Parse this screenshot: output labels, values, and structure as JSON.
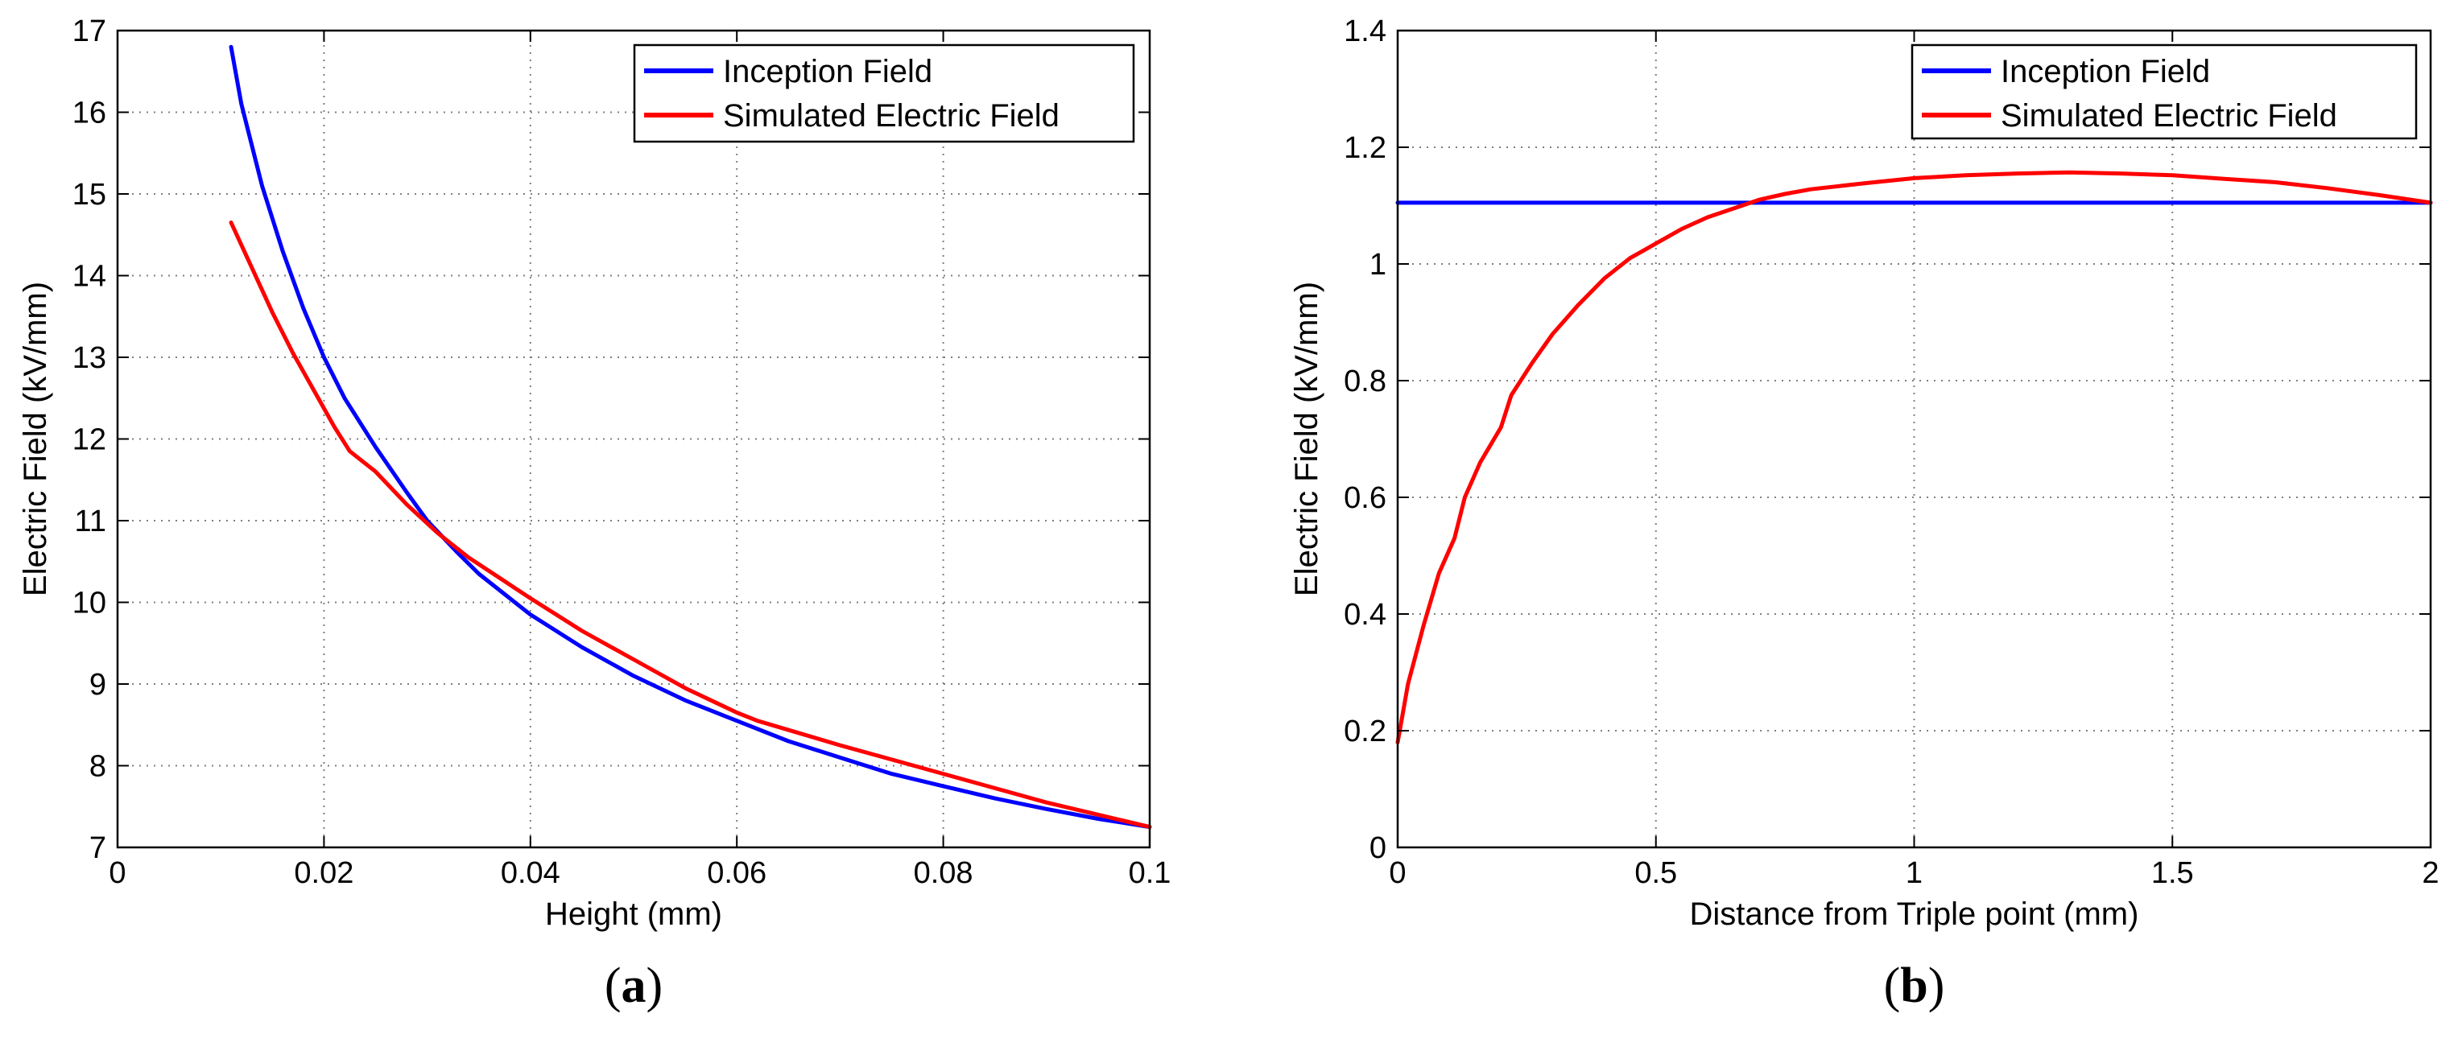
{
  "chart_data": [
    {
      "type": "line",
      "panel_label": "(a)",
      "panel_letter": "a",
      "xlabel": "Height (mm)",
      "ylabel": "Electric Field (kV/mm)",
      "xlim": [
        0,
        0.1
      ],
      "ylim": [
        7,
        17
      ],
      "xticks": [
        0,
        0.02,
        0.04,
        0.06,
        0.08,
        0.1
      ],
      "yticks": [
        7,
        8,
        9,
        10,
        11,
        12,
        13,
        14,
        15,
        16,
        17
      ],
      "xtick_labels": [
        "0",
        "0.02",
        "0.04",
        "0.06",
        "0.08",
        "0.1"
      ],
      "ytick_labels": [
        "7",
        "8",
        "9",
        "10",
        "11",
        "12",
        "13",
        "14",
        "15",
        "16",
        "17"
      ],
      "grid": true,
      "legend_position": "top-right",
      "series": [
        {
          "name": "Inception Field",
          "color": "#0000ff",
          "points": [
            [
              0.011,
              16.8
            ],
            [
              0.012,
              16.1
            ],
            [
              0.014,
              15.1
            ],
            [
              0.016,
              14.3
            ],
            [
              0.018,
              13.6
            ],
            [
              0.02,
              13.0
            ],
            [
              0.022,
              12.5
            ],
            [
              0.025,
              11.9
            ],
            [
              0.028,
              11.35
            ],
            [
              0.03,
              11.0
            ],
            [
              0.033,
              10.6
            ],
            [
              0.035,
              10.35
            ],
            [
              0.04,
              9.85
            ],
            [
              0.045,
              9.45
            ],
            [
              0.05,
              9.1
            ],
            [
              0.055,
              8.8
            ],
            [
              0.06,
              8.55
            ],
            [
              0.065,
              8.3
            ],
            [
              0.07,
              8.1
            ],
            [
              0.075,
              7.9
            ],
            [
              0.08,
              7.75
            ],
            [
              0.085,
              7.6
            ],
            [
              0.09,
              7.47
            ],
            [
              0.095,
              7.35
            ],
            [
              0.1,
              7.25
            ]
          ]
        },
        {
          "name": "Simulated Electric Field",
          "color": "#ff0000",
          "points": [
            [
              0.011,
              14.65
            ],
            [
              0.013,
              14.1
            ],
            [
              0.015,
              13.55
            ],
            [
              0.017,
              13.05
            ],
            [
              0.019,
              12.6
            ],
            [
              0.021,
              12.15
            ],
            [
              0.0225,
              11.85
            ],
            [
              0.025,
              11.6
            ],
            [
              0.028,
              11.2
            ],
            [
              0.031,
              10.85
            ],
            [
              0.034,
              10.55
            ],
            [
              0.037,
              10.3
            ],
            [
              0.04,
              10.05
            ],
            [
              0.045,
              9.65
            ],
            [
              0.05,
              9.3
            ],
            [
              0.055,
              8.95
            ],
            [
              0.06,
              8.65
            ],
            [
              0.062,
              8.55
            ],
            [
              0.07,
              8.25
            ],
            [
              0.08,
              7.9
            ],
            [
              0.09,
              7.55
            ],
            [
              0.1,
              7.25
            ]
          ]
        }
      ]
    },
    {
      "type": "line",
      "panel_label": "(b)",
      "panel_letter": "b",
      "xlabel": "Distance from Triple point (mm)",
      "ylabel": "Electric Field (kV/mm)",
      "xlim": [
        0,
        2
      ],
      "ylim": [
        0,
        1.4
      ],
      "xticks": [
        0,
        0.5,
        1,
        1.5,
        2
      ],
      "yticks": [
        0,
        0.2,
        0.4,
        0.6,
        0.8,
        1,
        1.2,
        1.4
      ],
      "xtick_labels": [
        "0",
        "0.5",
        "1",
        "1.5",
        "2"
      ],
      "ytick_labels": [
        "0",
        "0.2",
        "0.4",
        "0.6",
        "0.8",
        "1",
        "1.2",
        "1.4"
      ],
      "grid": true,
      "legend_position": "top-right",
      "series": [
        {
          "name": "Inception Field",
          "color": "#0000ff",
          "points": [
            [
              0,
              1.105
            ],
            [
              2,
              1.105
            ]
          ]
        },
        {
          "name": "Simulated Electric Field",
          "color": "#ff0000",
          "points": [
            [
              0,
              0.18
            ],
            [
              0.02,
              0.28
            ],
            [
              0.05,
              0.38
            ],
            [
              0.08,
              0.47
            ],
            [
              0.11,
              0.53
            ],
            [
              0.13,
              0.6
            ],
            [
              0.16,
              0.66
            ],
            [
              0.2,
              0.72
            ],
            [
              0.22,
              0.775
            ],
            [
              0.26,
              0.83
            ],
            [
              0.3,
              0.88
            ],
            [
              0.35,
              0.93
            ],
            [
              0.4,
              0.975
            ],
            [
              0.45,
              1.01
            ],
            [
              0.5,
              1.035
            ],
            [
              0.55,
              1.06
            ],
            [
              0.6,
              1.08
            ],
            [
              0.65,
              1.095
            ],
            [
              0.7,
              1.11
            ],
            [
              0.75,
              1.12
            ],
            [
              0.8,
              1.128
            ],
            [
              0.9,
              1.138
            ],
            [
              1.0,
              1.147
            ],
            [
              1.1,
              1.152
            ],
            [
              1.2,
              1.155
            ],
            [
              1.3,
              1.157
            ],
            [
              1.4,
              1.155
            ],
            [
              1.5,
              1.152
            ],
            [
              1.6,
              1.146
            ],
            [
              1.7,
              1.14
            ],
            [
              1.8,
              1.13
            ],
            [
              1.9,
              1.118
            ],
            [
              2.0,
              1.105
            ]
          ]
        }
      ]
    }
  ]
}
